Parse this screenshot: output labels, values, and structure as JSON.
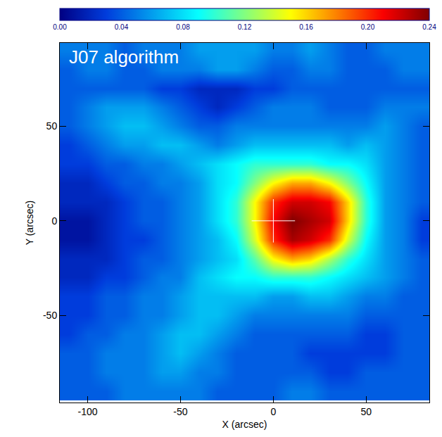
{
  "chart_data": {
    "type": "heatmap",
    "annotation": "J07 algorithm",
    "x_label": "X (arcsec)",
    "y_label": "Y (arcsec)",
    "xlim": [
      -115,
      84
    ],
    "ylim": [
      -96,
      94
    ],
    "xticks": [
      -100,
      -50,
      0,
      50
    ],
    "yticks": [
      -50,
      0,
      50
    ],
    "colorbar_range": [
      0,
      0.24
    ],
    "colorbar_ticks": [
      {
        "value": 0,
        "label": "0.00"
      },
      {
        "value": 0.04,
        "label": "0.04"
      },
      {
        "value": 0.08,
        "label": "0.08"
      },
      {
        "value": 0.12,
        "label": "0.12"
      },
      {
        "value": 0.16,
        "label": "0.16"
      },
      {
        "value": 0.2,
        "label": "0.20"
      },
      {
        "value": 0.24,
        "label": "0.24"
      }
    ],
    "cross": {
      "x": 0,
      "y": 0,
      "marker": "cross",
      "color": "#ffffff"
    },
    "x": [
      -110,
      -100,
      -90,
      -80,
      -70,
      -60,
      -50,
      -40,
      -30,
      -20,
      -10,
      0,
      10,
      20,
      30,
      40,
      50,
      60,
      70,
      80
    ],
    "y": [
      90,
      80,
      70,
      60,
      50,
      40,
      30,
      20,
      10,
      0,
      -10,
      -20,
      -30,
      -40,
      -50,
      -60,
      -70,
      -80,
      -90
    ],
    "z": [
      [
        0.05,
        0.05,
        0.05,
        0.04,
        0.05,
        0.05,
        0.05,
        0.06,
        0.06,
        0.06,
        0.06,
        0.05,
        0.05,
        0.06,
        0.05,
        0.04,
        0.04,
        0.05,
        0.05,
        0.05
      ],
      [
        0.04,
        0.05,
        0.05,
        0.04,
        0.04,
        0.05,
        0.05,
        0.05,
        0.06,
        0.06,
        0.05,
        0.04,
        0.04,
        0.05,
        0.05,
        0.04,
        0.04,
        0.04,
        0.05,
        0.05
      ],
      [
        0.04,
        0.04,
        0.04,
        0.04,
        0.04,
        0.03,
        0.03,
        0.02,
        0.02,
        0.02,
        0.03,
        0.03,
        0.04,
        0.04,
        0.04,
        0.04,
        0.04,
        0.04,
        0.04,
        0.04
      ],
      [
        0.04,
        0.05,
        0.06,
        0.06,
        0.06,
        0.05,
        0.04,
        0.03,
        0.02,
        0.03,
        0.04,
        0.05,
        0.05,
        0.05,
        0.04,
        0.04,
        0.04,
        0.05,
        0.05,
        0.05
      ],
      [
        0.04,
        0.05,
        0.06,
        0.07,
        0.07,
        0.06,
        0.05,
        0.04,
        0.04,
        0.05,
        0.05,
        0.05,
        0.05,
        0.05,
        0.05,
        0.05,
        0.05,
        0.06,
        0.05,
        0.04
      ],
      [
        0.03,
        0.04,
        0.05,
        0.06,
        0.06,
        0.07,
        0.07,
        0.06,
        0.05,
        0.06,
        0.07,
        0.07,
        0.07,
        0.07,
        0.07,
        0.06,
        0.07,
        0.06,
        0.05,
        0.04
      ],
      [
        0.03,
        0.03,
        0.04,
        0.04,
        0.05,
        0.05,
        0.06,
        0.07,
        0.08,
        0.09,
        0.1,
        0.1,
        0.1,
        0.1,
        0.09,
        0.09,
        0.08,
        0.06,
        0.05,
        0.04
      ],
      [
        0.02,
        0.02,
        0.03,
        0.04,
        0.04,
        0.05,
        0.05,
        0.06,
        0.08,
        0.09,
        0.12,
        0.15,
        0.17,
        0.17,
        0.15,
        0.12,
        0.09,
        0.06,
        0.05,
        0.04
      ],
      [
        0.02,
        0.02,
        0.02,
        0.03,
        0.04,
        0.04,
        0.05,
        0.06,
        0.08,
        0.1,
        0.15,
        0.2,
        0.22,
        0.22,
        0.21,
        0.16,
        0.1,
        0.06,
        0.05,
        0.04
      ],
      [
        0.01,
        0.01,
        0.02,
        0.03,
        0.04,
        0.04,
        0.05,
        0.06,
        0.08,
        0.1,
        0.15,
        0.21,
        0.24,
        0.23,
        0.22,
        0.16,
        0.1,
        0.06,
        0.05,
        0.03
      ],
      [
        0.01,
        0.01,
        0.02,
        0.03,
        0.03,
        0.04,
        0.05,
        0.06,
        0.07,
        0.09,
        0.14,
        0.2,
        0.23,
        0.22,
        0.2,
        0.14,
        0.09,
        0.06,
        0.05,
        0.03
      ],
      [
        0.02,
        0.02,
        0.02,
        0.03,
        0.04,
        0.04,
        0.05,
        0.06,
        0.07,
        0.08,
        0.11,
        0.15,
        0.17,
        0.16,
        0.13,
        0.1,
        0.08,
        0.06,
        0.05,
        0.04
      ],
      [
        0.02,
        0.02,
        0.03,
        0.03,
        0.04,
        0.05,
        0.05,
        0.07,
        0.08,
        0.09,
        0.09,
        0.1,
        0.1,
        0.1,
        0.09,
        0.08,
        0.07,
        0.06,
        0.05,
        0.04
      ],
      [
        0.03,
        0.03,
        0.04,
        0.04,
        0.05,
        0.05,
        0.06,
        0.07,
        0.07,
        0.07,
        0.07,
        0.06,
        0.06,
        0.07,
        0.07,
        0.06,
        0.05,
        0.05,
        0.04,
        0.04
      ],
      [
        0.03,
        0.03,
        0.04,
        0.04,
        0.05,
        0.05,
        0.06,
        0.07,
        0.07,
        0.06,
        0.05,
        0.05,
        0.05,
        0.05,
        0.05,
        0.05,
        0.04,
        0.04,
        0.04,
        0.04
      ],
      [
        0.03,
        0.04,
        0.04,
        0.05,
        0.05,
        0.06,
        0.07,
        0.07,
        0.06,
        0.05,
        0.04,
        0.04,
        0.04,
        0.04,
        0.04,
        0.04,
        0.03,
        0.03,
        0.04,
        0.04
      ],
      [
        0.04,
        0.04,
        0.05,
        0.05,
        0.05,
        0.06,
        0.07,
        0.06,
        0.05,
        0.04,
        0.04,
        0.04,
        0.04,
        0.03,
        0.03,
        0.03,
        0.03,
        0.03,
        0.04,
        0.04
      ],
      [
        0.04,
        0.04,
        0.05,
        0.05,
        0.05,
        0.06,
        0.06,
        0.05,
        0.05,
        0.04,
        0.04,
        0.04,
        0.04,
        0.04,
        0.03,
        0.03,
        0.04,
        0.04,
        0.04,
        0.04
      ],
      [
        0.04,
        0.04,
        0.04,
        0.05,
        0.05,
        0.05,
        0.05,
        0.05,
        0.04,
        0.04,
        0.04,
        0.04,
        0.05,
        0.05,
        0.04,
        0.04,
        0.04,
        0.04,
        0.04,
        0.04
      ]
    ]
  }
}
